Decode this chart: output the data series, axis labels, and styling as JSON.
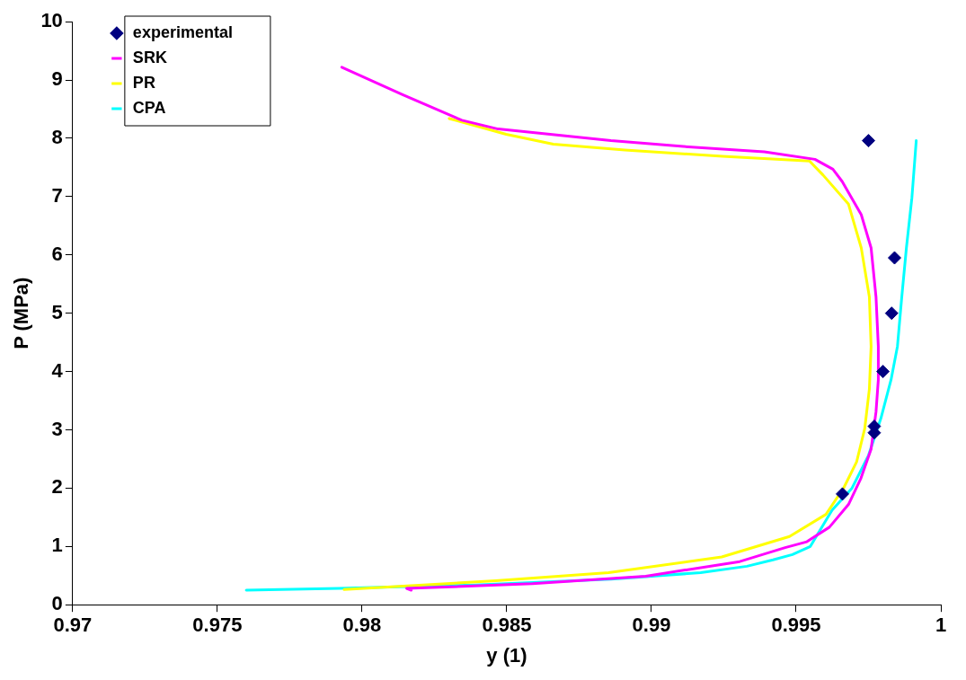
{
  "chart_data": {
    "type": "line",
    "xlabel": "y (1)",
    "ylabel": "P (MPa)",
    "xlim": [
      0.97,
      1
    ],
    "xticks": [
      0.97,
      0.975,
      0.98,
      0.985,
      0.99,
      0.995,
      1
    ],
    "ylim": [
      0,
      10
    ],
    "yticks": [
      0,
      1,
      2,
      3,
      4,
      5,
      6,
      7,
      8,
      9,
      10
    ],
    "grid": false,
    "legend": "top left",
    "line_style": "solid",
    "series": [
      {
        "name": "experimental",
        "type": "scatter",
        "marker": "diamond",
        "color": "#000080",
        "x": [
          0.9975,
          0.9984,
          0.9983,
          0.998,
          0.9977,
          0.9977,
          0.9966
        ],
        "values": [
          7.96,
          5.95,
          5.0,
          4.0,
          3.06,
          2.95,
          1.9
        ]
      },
      {
        "name": "SRK",
        "type": "line",
        "marker": "none",
        "color": "#ff00ff",
        "x": [
          0.9793,
          0.9814,
          0.98345,
          0.9847,
          0.9886,
          0.9911,
          0.9939,
          0.99565,
          0.99627,
          0.99659,
          0.99725,
          0.99759,
          0.99776,
          0.99784,
          0.99784,
          0.99776,
          0.99759,
          0.99724,
          0.99681,
          0.99615,
          0.99537,
          0.99462,
          0.99305,
          0.9898,
          0.98589,
          0.98154,
          0.9817
        ],
        "values": [
          9.22,
          8.75,
          8.31,
          8.16,
          7.96,
          7.86,
          7.77,
          7.64,
          7.47,
          7.26,
          6.69,
          6.12,
          5.28,
          4.43,
          3.86,
          3.31,
          2.67,
          2.17,
          1.72,
          1.33,
          1.08,
          0.98,
          0.74,
          0.49,
          0.36,
          0.28,
          0.25
        ]
      },
      {
        "name": "PR",
        "type": "line",
        "marker": "none",
        "color": "#ffff00",
        "x": [
          0.98301,
          0.98498,
          0.98661,
          0.98908,
          0.99246,
          0.99546,
          0.99593,
          0.99681,
          0.99725,
          0.99753,
          0.99759,
          0.99753,
          0.99737,
          0.99709,
          0.99665,
          0.99603,
          0.99477,
          0.99243,
          0.98852,
          0.98461,
          0.97938
        ],
        "values": [
          8.34,
          8.07,
          7.9,
          7.8,
          7.69,
          7.61,
          7.37,
          6.87,
          6.12,
          5.28,
          4.43,
          3.7,
          3.02,
          2.45,
          2.01,
          1.55,
          1.17,
          0.82,
          0.55,
          0.41,
          0.26
        ]
      },
      {
        "name": "CPA",
        "type": "line",
        "marker": "none",
        "color": "#00ffff",
        "x": [
          0.976,
          0.9792,
          0.9839,
          0.9886,
          0.9917,
          0.9933,
          0.9942,
          0.99487,
          0.99549,
          0.99624,
          0.99693,
          0.9975,
          0.99793,
          0.99828,
          0.9985,
          0.99865,
          0.99881,
          0.999,
          0.99915
        ],
        "values": [
          0.25,
          0.28,
          0.34,
          0.44,
          0.55,
          0.66,
          0.77,
          0.86,
          1.0,
          1.62,
          2.0,
          2.56,
          3.2,
          3.86,
          4.43,
          5.28,
          6.12,
          6.98,
          7.96
        ]
      }
    ]
  }
}
